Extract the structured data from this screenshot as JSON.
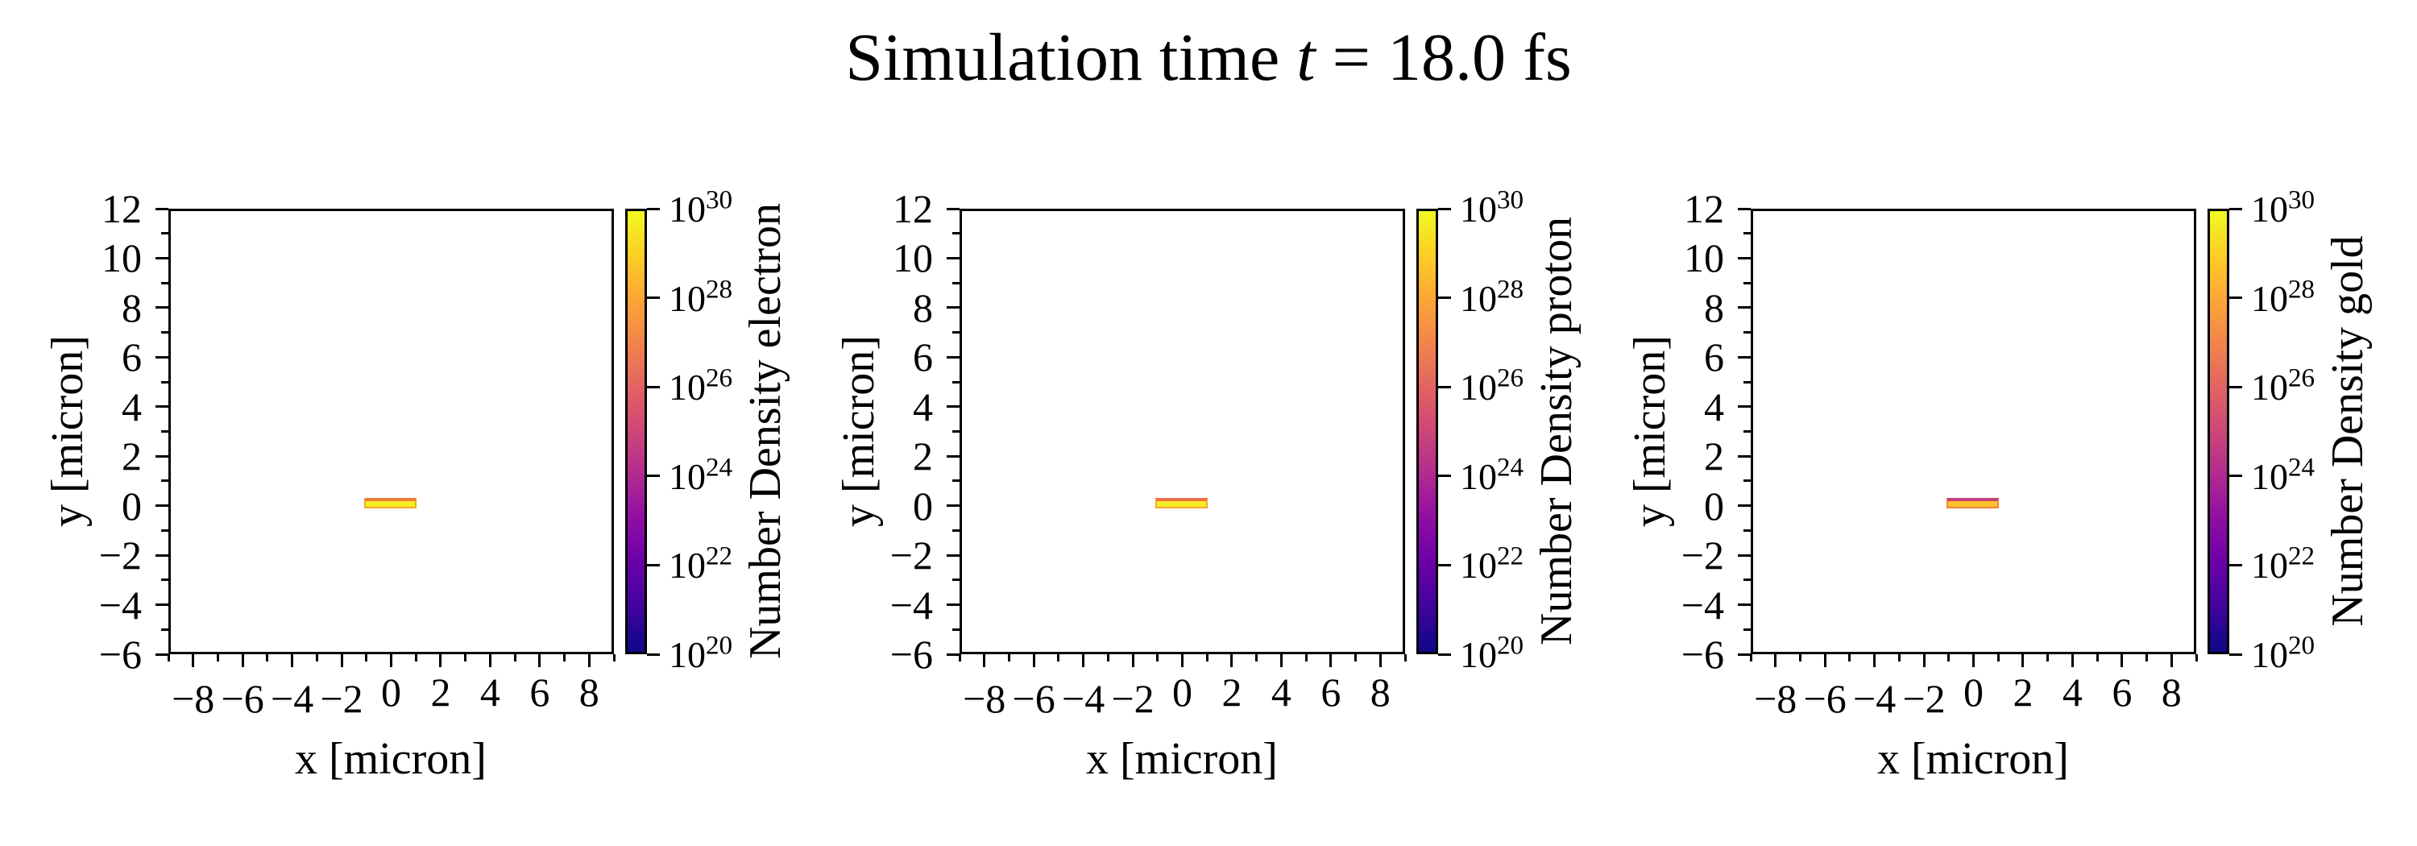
{
  "title": {
    "prefix": "Simulation time ",
    "t_symbol": "t",
    "suffix": " = 18.0 fs"
  },
  "colors": {
    "background": "#ffffff",
    "axes_line": "#000000",
    "plasma_stops": [
      "#0d0887",
      "#41049d",
      "#6a00a8",
      "#8f0da4",
      "#b12a90",
      "#cc4778",
      "#e16462",
      "#f2844b",
      "#fca636",
      "#fcce25",
      "#f0f921"
    ]
  },
  "panels": [
    {
      "species": "electron",
      "xlabel": "x [micron]",
      "ylabel": "y [micron]",
      "colorbar_label": "Number Density electron",
      "x_ticks": [
        "−8",
        "−6",
        "−4",
        "−2",
        "0",
        "2",
        "4",
        "6",
        "8"
      ],
      "y_ticks": [
        "12",
        "10",
        "8",
        "6",
        "4",
        "2",
        "0",
        "−2",
        "−4",
        "−6"
      ],
      "cbar_base": "10",
      "cbar_exponents": [
        "30",
        "28",
        "26",
        "24",
        "22",
        "20"
      ],
      "bar": {
        "fill": "#f3ee21",
        "top_edge": "#f07b3a",
        "edge": "#f8a625"
      }
    },
    {
      "species": "proton",
      "xlabel": "x [micron]",
      "ylabel": "y [micron]",
      "colorbar_label": "Number Density proton",
      "x_ticks": [
        "−8",
        "−6",
        "−4",
        "−2",
        "0",
        "2",
        "4",
        "6",
        "8"
      ],
      "y_ticks": [
        "12",
        "10",
        "8",
        "6",
        "4",
        "2",
        "0",
        "−2",
        "−4",
        "−6"
      ],
      "cbar_base": "10",
      "cbar_exponents": [
        "30",
        "28",
        "26",
        "24",
        "22",
        "20"
      ],
      "bar": {
        "fill": "#f4ee26",
        "top_edge": "#ef7148",
        "edge": "#f8a625"
      }
    },
    {
      "species": "gold",
      "xlabel": "x [micron]",
      "ylabel": "y [micron]",
      "colorbar_label": "Number Density gold",
      "x_ticks": [
        "−8",
        "−6",
        "−4",
        "−2",
        "0",
        "2",
        "4",
        "6",
        "8"
      ],
      "y_ticks": [
        "12",
        "10",
        "8",
        "6",
        "4",
        "2",
        "0",
        "−2",
        "−4",
        "−6"
      ],
      "cbar_base": "10",
      "cbar_exponents": [
        "30",
        "28",
        "26",
        "24",
        "22",
        "20"
      ],
      "bar": {
        "fill": "#fdc22c",
        "top_edge": "#c5407a",
        "edge": "#f08540"
      }
    }
  ],
  "chart_data": [
    {
      "type": "heatmap",
      "series_name": "Number Density electron",
      "xlabel": "x [micron]",
      "ylabel": "y [micron]",
      "xlim": [
        -9,
        9
      ],
      "ylim": [
        -6,
        12
      ],
      "x_major_ticks": [
        -8,
        -6,
        -4,
        -2,
        0,
        2,
        4,
        6,
        8
      ],
      "y_major_ticks": [
        12,
        10,
        8,
        6,
        4,
        2,
        0,
        -2,
        -4,
        -6
      ],
      "colormap": "plasma",
      "color_scale": "log",
      "color_range": [
        "1e20",
        "1e30"
      ],
      "colorbar_ticks": [
        "1e30",
        "1e28",
        "1e26",
        "1e24",
        "1e22",
        "1e20"
      ],
      "features": [
        {
          "shape": "rect",
          "x_range": [
            -1,
            1
          ],
          "y_range": [
            0,
            0.3
          ],
          "approx_value": "1e30",
          "appearance": "bright yellow slab with orange top edge"
        }
      ],
      "background_value": "below 1e20 (white/empty)"
    },
    {
      "type": "heatmap",
      "series_name": "Number Density proton",
      "xlabel": "x [micron]",
      "ylabel": "y [micron]",
      "xlim": [
        -9,
        9
      ],
      "ylim": [
        -6,
        12
      ],
      "x_major_ticks": [
        -8,
        -6,
        -4,
        -2,
        0,
        2,
        4,
        6,
        8
      ],
      "y_major_ticks": [
        12,
        10,
        8,
        6,
        4,
        2,
        0,
        -2,
        -4,
        -6
      ],
      "colormap": "plasma",
      "color_scale": "log",
      "color_range": [
        "1e20",
        "1e30"
      ],
      "colorbar_ticks": [
        "1e30",
        "1e28",
        "1e26",
        "1e24",
        "1e22",
        "1e20"
      ],
      "features": [
        {
          "shape": "rect",
          "x_range": [
            -1,
            1
          ],
          "y_range": [
            0,
            0.3
          ],
          "approx_value": "1e30",
          "appearance": "bright yellow slab with orange top edge"
        }
      ],
      "background_value": "below 1e20 (white/empty)"
    },
    {
      "type": "heatmap",
      "series_name": "Number Density gold",
      "xlabel": "x [micron]",
      "ylabel": "y [micron]",
      "xlim": [
        -9,
        9
      ],
      "ylim": [
        -6,
        12
      ],
      "x_major_ticks": [
        -8,
        -6,
        -4,
        -2,
        0,
        2,
        4,
        6,
        8
      ],
      "y_major_ticks": [
        12,
        10,
        8,
        6,
        4,
        2,
        0,
        -2,
        -4,
        -6
      ],
      "colormap": "plasma",
      "color_scale": "log",
      "color_range": [
        "1e20",
        "1e30"
      ],
      "colorbar_ticks": [
        "1e30",
        "1e28",
        "1e26",
        "1e24",
        "1e22",
        "1e20"
      ],
      "features": [
        {
          "shape": "rect",
          "x_range": [
            -1,
            1
          ],
          "y_range": [
            0,
            0.3
          ],
          "approx_value": "1e28",
          "appearance": "orange slab with magenta top edge"
        }
      ],
      "background_value": "below 1e20 (white/empty)"
    }
  ]
}
